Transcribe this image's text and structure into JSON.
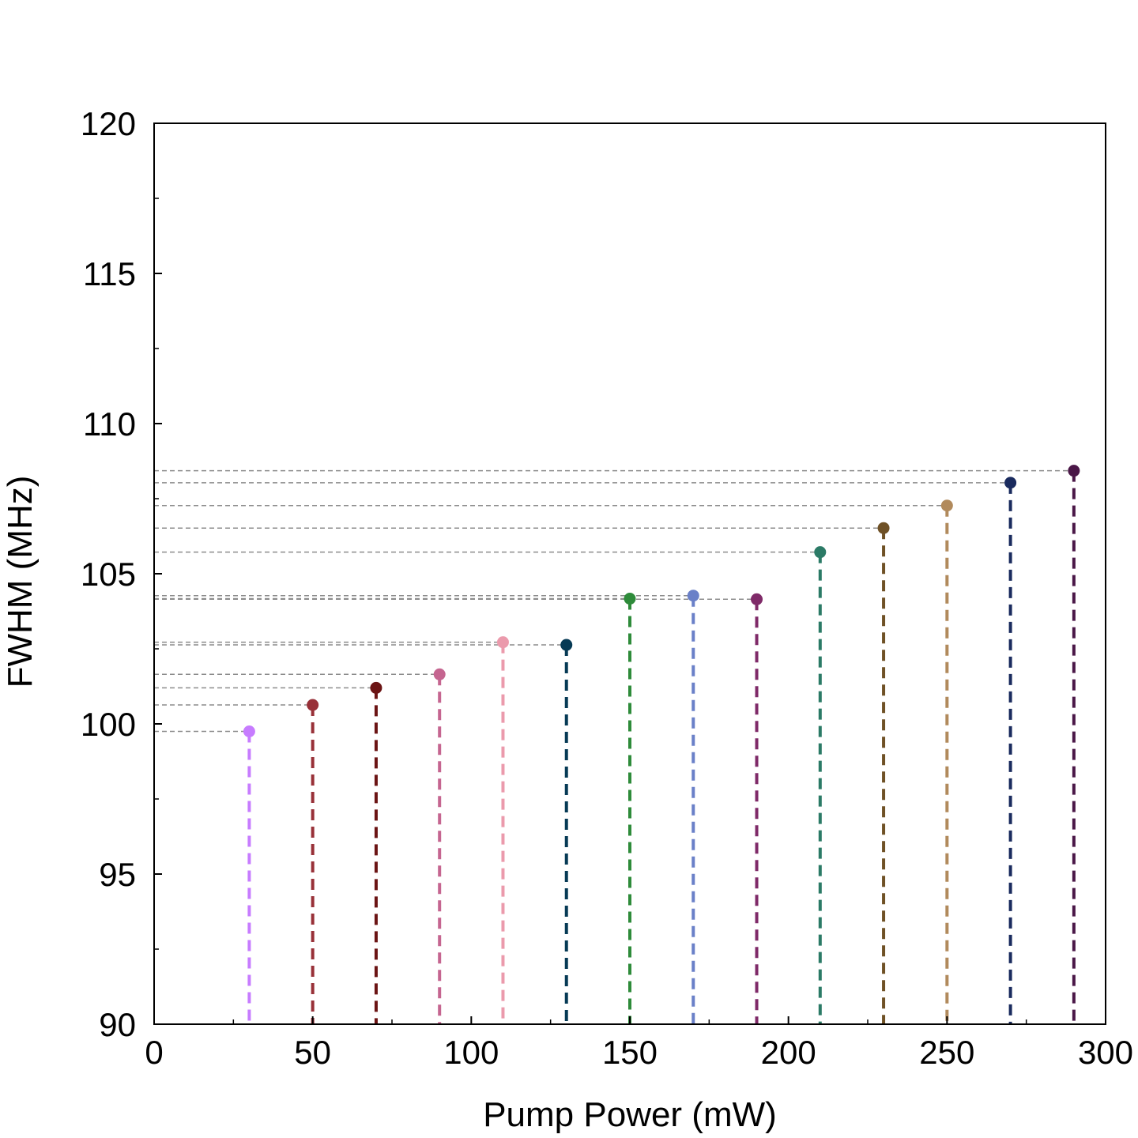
{
  "chart_data": {
    "type": "scatter",
    "style": "stem plot with dashed vertical stems and dashed horizontal guide lines to the y-axis",
    "xlabel": "Pump Power (mW)",
    "ylabel": "FWHM (MHz)",
    "xlim": [
      0,
      300
    ],
    "ylim": [
      90,
      120
    ],
    "xticks": [
      "0",
      "50",
      "100",
      "150",
      "200",
      "250",
      "300"
    ],
    "yticks": [
      "90",
      "95",
      "100",
      "105",
      "110",
      "115",
      "120"
    ],
    "grid": false,
    "points": [
      {
        "x": 30,
        "y": 99.75,
        "color": "#c77cff"
      },
      {
        "x": 50,
        "y": 100.63,
        "color": "#983038"
      },
      {
        "x": 70,
        "y": 101.2,
        "color": "#6b1414"
      },
      {
        "x": 90,
        "y": 101.65,
        "color": "#c56590"
      },
      {
        "x": 110,
        "y": 102.72,
        "color": "#eb9aac"
      },
      {
        "x": 130,
        "y": 102.63,
        "color": "#063a55"
      },
      {
        "x": 150,
        "y": 104.17,
        "color": "#2e8b3a"
      },
      {
        "x": 170,
        "y": 104.27,
        "color": "#6a80c8"
      },
      {
        "x": 190,
        "y": 104.15,
        "color": "#7f2a68"
      },
      {
        "x": 210,
        "y": 105.72,
        "color": "#2b7a66"
      },
      {
        "x": 230,
        "y": 106.52,
        "color": "#6f5126"
      },
      {
        "x": 250,
        "y": 107.27,
        "color": "#b18a5c"
      },
      {
        "x": 270,
        "y": 108.03,
        "color": "#1a2b5e"
      },
      {
        "x": 290,
        "y": 108.43,
        "color": "#4a1747"
      }
    ]
  }
}
